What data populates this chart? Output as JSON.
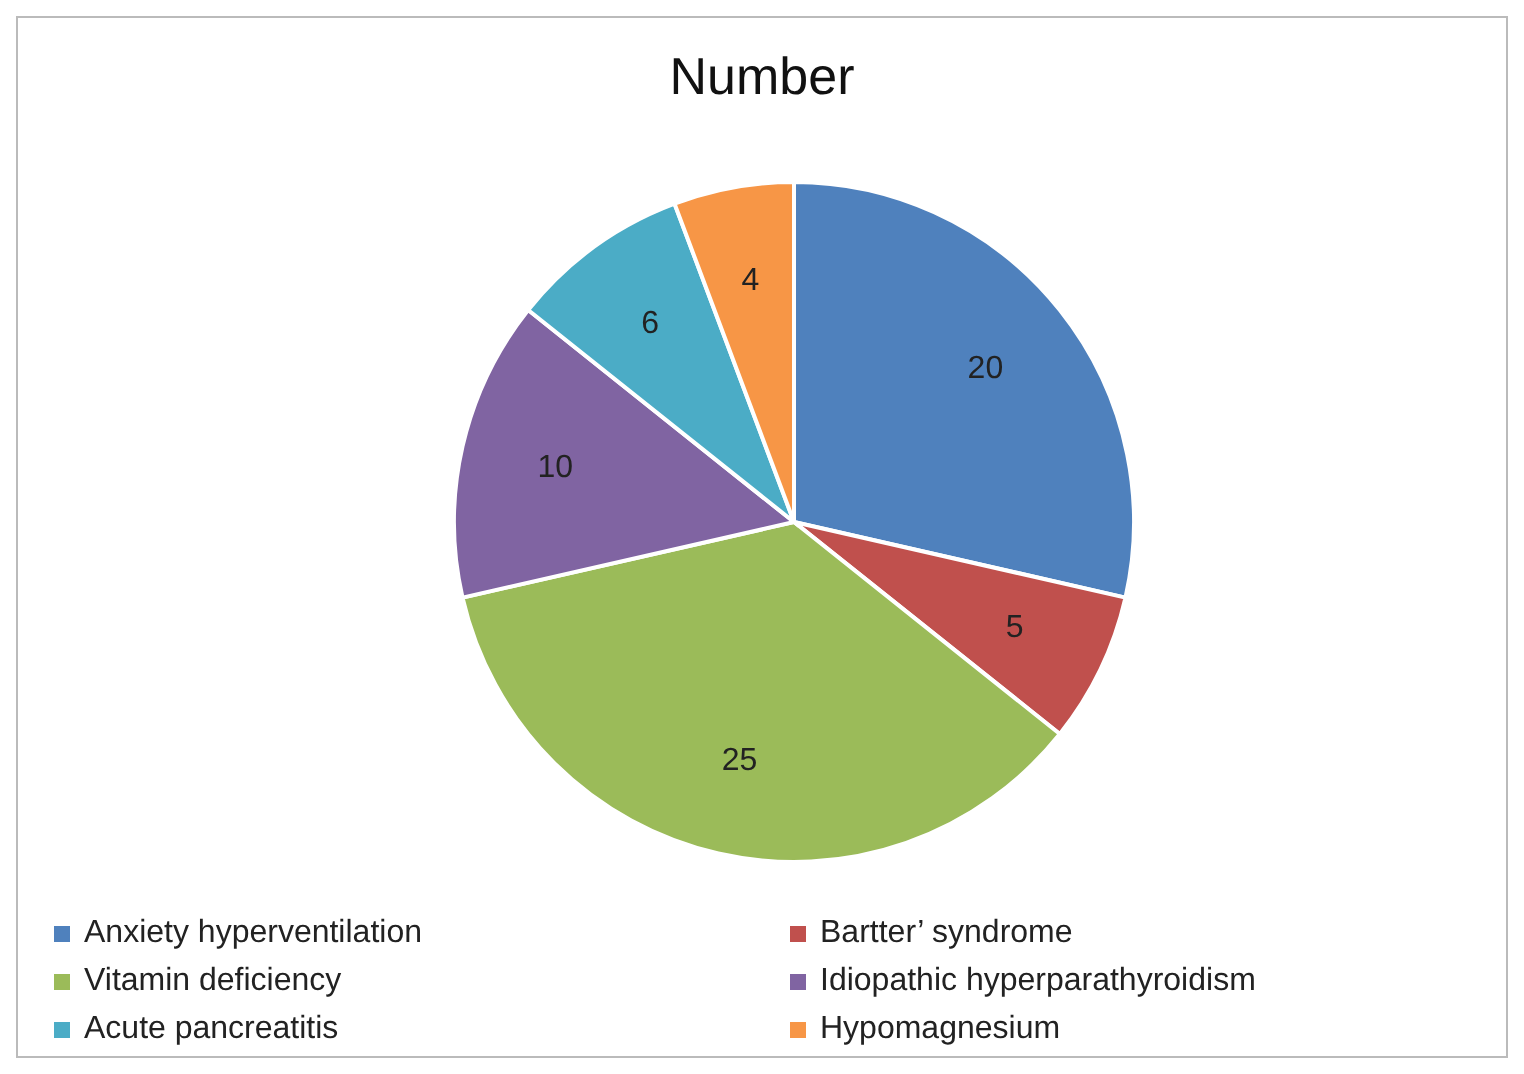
{
  "chart_data": {
    "type": "pie",
    "title": "Number",
    "categories": [
      "Anxiety hyperventilation",
      "Bartter’ syndrome",
      "Vitamin deficiency",
      "Idiopathic hyperparathyroidism",
      "Acute pancreatitis",
      "Hypomagnesium"
    ],
    "values": [
      20,
      5,
      25,
      10,
      6,
      4
    ],
    "colors": [
      "#4f81bd",
      "#c0504d",
      "#9bbb59",
      "#8064a2",
      "#4bacc6",
      "#f79646"
    ],
    "data_labels": true,
    "legend": "bottom"
  }
}
